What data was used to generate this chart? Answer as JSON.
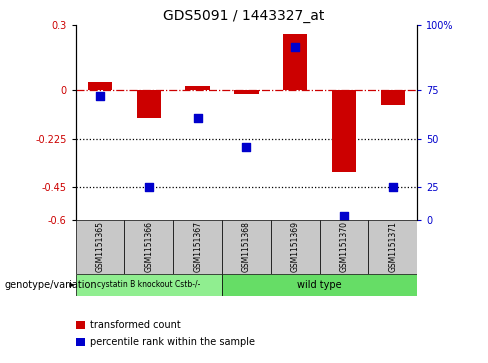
{
  "title": "GDS5091 / 1443327_at",
  "samples": [
    "GSM1151365",
    "GSM1151366",
    "GSM1151367",
    "GSM1151368",
    "GSM1151369",
    "GSM1151370",
    "GSM1151371"
  ],
  "red_values": [
    0.04,
    -0.13,
    0.02,
    -0.02,
    0.26,
    -0.38,
    -0.07
  ],
  "blue_values": [
    -0.025,
    -0.45,
    -0.13,
    -0.265,
    0.2,
    -0.585,
    -0.45
  ],
  "ylim": [
    -0.6,
    0.3
  ],
  "yticks_left": [
    0.3,
    0.0,
    -0.225,
    -0.45,
    -0.6
  ],
  "yticks_left_labels": [
    "0.3",
    "0",
    "-0.225",
    "-0.45",
    "-0.6"
  ],
  "right_tick_positions": [
    0.3,
    0.0,
    -0.225,
    -0.45,
    -0.6
  ],
  "right_tick_labels": [
    "100%",
    "75",
    "50",
    "25",
    "0"
  ],
  "dotted_levels": [
    -0.225,
    -0.45
  ],
  "dash_dot_level": 0.0,
  "group1_label": "cystatin B knockout Cstb-/-",
  "group2_label": "wild type",
  "group1_color": "#90EE90",
  "group2_color": "#66DD66",
  "bar_width": 0.5,
  "red_color": "#CC0000",
  "blue_color": "#0000CC",
  "legend_red": "transformed count",
  "legend_blue": "percentile rank within the sample",
  "genotype_label": "genotype/variation",
  "bg_color": "#C8C8C8",
  "right_ylabel_color": "#0000CC",
  "left_ylabel_color": "#CC0000"
}
